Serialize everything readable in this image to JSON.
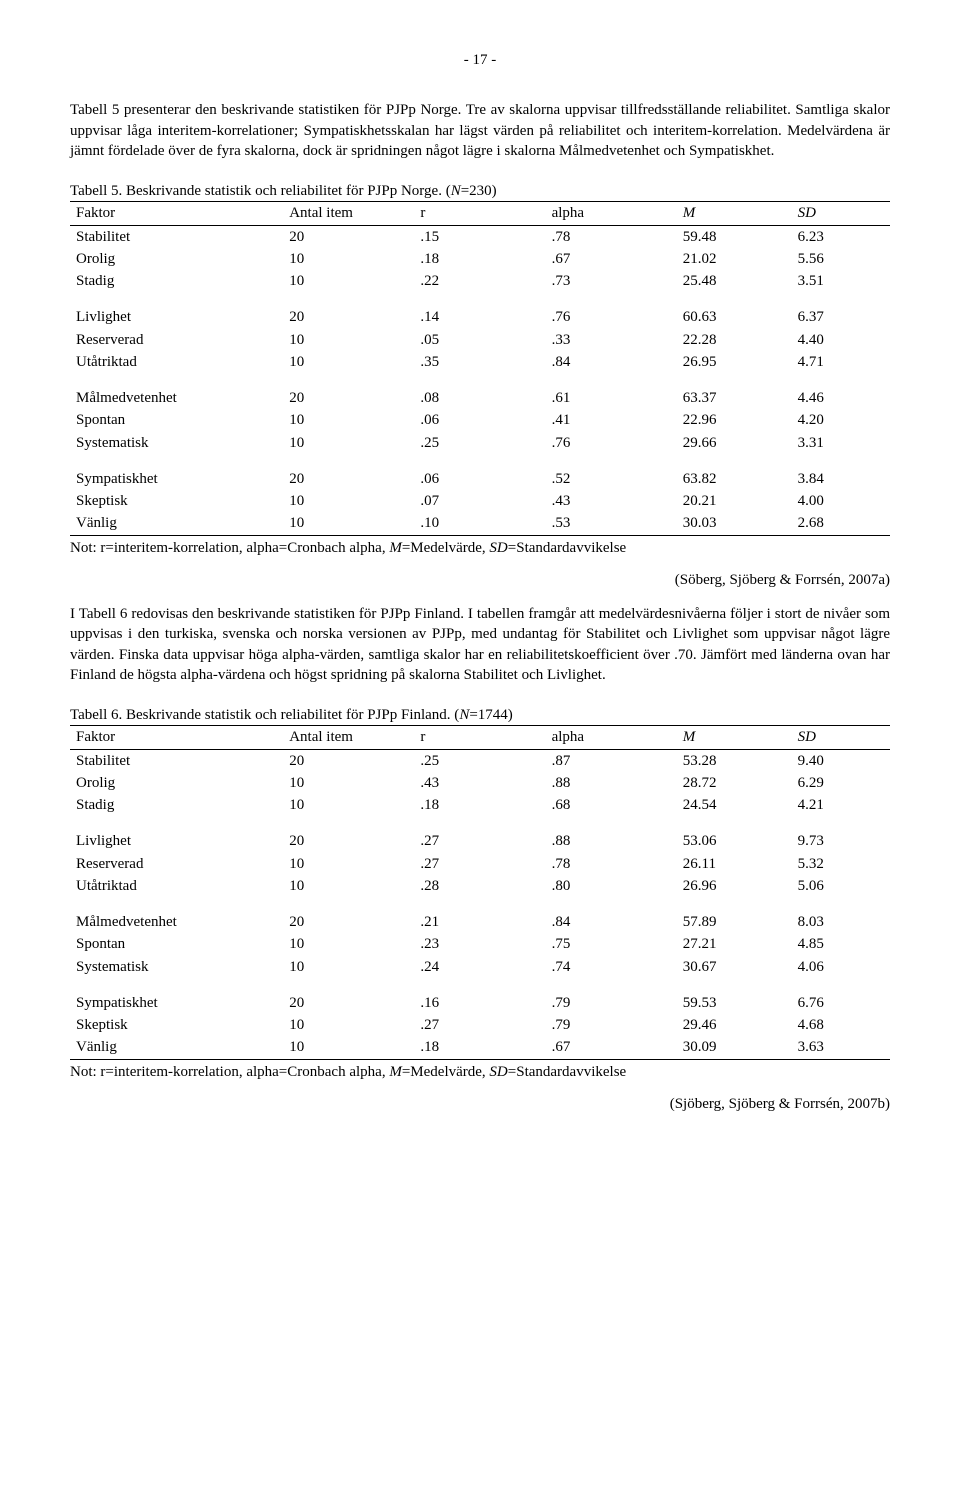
{
  "pageNumber": "- 17 -",
  "para1": "Tabell 5 presenterar den beskrivande statistiken för PJPp Norge. Tre av skalorna uppvisar tillfredsställande reliabilitet. Samtliga skalor uppvisar låga interitem-korrelationer; Sympatiskhetsskalan har lägst värden på reliabilitet och interitem-korrelation. Medelvärdena är jämnt fördelade över de fyra skalorna, dock är spridningen något lägre i skalorna Målmedvetenhet och Sympatiskhet.",
  "table5": {
    "caption_a": "Tabell 5. Beskrivande statistik och reliabilitet för PJPp Norge. (",
    "caption_n": "N",
    "caption_b": "=230)",
    "headers": {
      "f": "Faktor",
      "i": "Antal item",
      "r": "r",
      "a": "alpha",
      "m": "M",
      "sd": "SD"
    },
    "groups": [
      [
        {
          "f": "Stabilitet",
          "i": "20",
          "r": ".15",
          "a": ".78",
          "m": "59.48",
          "sd": "6.23"
        },
        {
          "f": "Orolig",
          "i": "10",
          "r": ".18",
          "a": ".67",
          "m": "21.02",
          "sd": "5.56"
        },
        {
          "f": "Stadig",
          "i": "10",
          "r": ".22",
          "a": ".73",
          "m": "25.48",
          "sd": "3.51"
        }
      ],
      [
        {
          "f": "Livlighet",
          "i": "20",
          "r": ".14",
          "a": ".76",
          "m": "60.63",
          "sd": "6.37"
        },
        {
          "f": "Reserverad",
          "i": "10",
          "r": ".05",
          "a": ".33",
          "m": "22.28",
          "sd": "4.40"
        },
        {
          "f": "Utåtriktad",
          "i": "10",
          "r": ".35",
          "a": ".84",
          "m": "26.95",
          "sd": "4.71"
        }
      ],
      [
        {
          "f": "Målmedvetenhet",
          "i": "20",
          "r": ".08",
          "a": ".61",
          "m": "63.37",
          "sd": "4.46"
        },
        {
          "f": "Spontan",
          "i": "10",
          "r": ".06",
          "a": ".41",
          "m": "22.96",
          "sd": "4.20"
        },
        {
          "f": "Systematisk",
          "i": "10",
          "r": ".25",
          "a": ".76",
          "m": "29.66",
          "sd": "3.31"
        }
      ],
      [
        {
          "f": "Sympatiskhet",
          "i": "20",
          "r": ".06",
          "a": ".52",
          "m": "63.82",
          "sd": "3.84"
        },
        {
          "f": "Skeptisk",
          "i": "10",
          "r": ".07",
          "a": ".43",
          "m": "20.21",
          "sd": "4.00"
        },
        {
          "f": "Vänlig",
          "i": "10",
          "r": ".10",
          "a": ".53",
          "m": "30.03",
          "sd": "2.68"
        }
      ]
    ],
    "note_a": "Not: r=interitem-korrelation, alpha=Cronbach alpha, ",
    "note_m": "M",
    "note_b": "=Medelvärde, ",
    "note_sd": "SD",
    "note_c": "=Standardavvikelse",
    "source": "(Söberg, Sjöberg & Forrsén, 2007a)"
  },
  "para2": "I Tabell 6 redovisas den beskrivande statistiken för PJPp Finland. I tabellen framgår att medelvärdesnivåerna följer i stort de nivåer som uppvisas i den turkiska, svenska och norska versionen av PJPp, med undantag för Stabilitet och Livlighet som uppvisar något lägre värden. Finska data uppvisar höga alpha-värden, samtliga skalor har en reliabilitetskoefficient över .70. Jämfört med länderna ovan har Finland de högsta alpha-värdena och högst spridning på skalorna Stabilitet och Livlighet.",
  "table6": {
    "caption_a": "Tabell 6. Beskrivande statistik och reliabilitet för PJPp Finland. (",
    "caption_n": "N",
    "caption_b": "=1744)",
    "headers": {
      "f": "Faktor",
      "i": "Antal item",
      "r": "r",
      "a": "alpha",
      "m": "M",
      "sd": "SD"
    },
    "groups": [
      [
        {
          "f": "Stabilitet",
          "i": "20",
          "r": ".25",
          "a": ".87",
          "m": "53.28",
          "sd": "9.40"
        },
        {
          "f": "Orolig",
          "i": "10",
          "r": ".43",
          "a": ".88",
          "m": "28.72",
          "sd": "6.29"
        },
        {
          "f": "Stadig",
          "i": "10",
          "r": ".18",
          "a": ".68",
          "m": "24.54",
          "sd": "4.21"
        }
      ],
      [
        {
          "f": "Livlighet",
          "i": "20",
          "r": ".27",
          "a": ".88",
          "m": "53.06",
          "sd": "9.73"
        },
        {
          "f": "Reserverad",
          "i": "10",
          "r": ".27",
          "a": ".78",
          "m": "26.11",
          "sd": "5.32"
        },
        {
          "f": "Utåtriktad",
          "i": "10",
          "r": ".28",
          "a": ".80",
          "m": "26.96",
          "sd": "5.06"
        }
      ],
      [
        {
          "f": "Målmedvetenhet",
          "i": "20",
          "r": ".21",
          "a": ".84",
          "m": "57.89",
          "sd": "8.03"
        },
        {
          "f": "Spontan",
          "i": "10",
          "r": ".23",
          "a": ".75",
          "m": "27.21",
          "sd": "4.85"
        },
        {
          "f": "Systematisk",
          "i": "10",
          "r": ".24",
          "a": ".74",
          "m": "30.67",
          "sd": "4.06"
        }
      ],
      [
        {
          "f": "Sympatiskhet",
          "i": "20",
          "r": ".16",
          "a": ".79",
          "m": "59.53",
          "sd": "6.76"
        },
        {
          "f": "Skeptisk",
          "i": "10",
          "r": ".27",
          "a": ".79",
          "m": "29.46",
          "sd": "4.68"
        },
        {
          "f": "Vänlig",
          "i": "10",
          "r": ".18",
          "a": ".67",
          "m": "30.09",
          "sd": "3.63"
        }
      ]
    ],
    "note_a": "Not: r=interitem-korrelation, alpha=Cronbach alpha, ",
    "note_m": "M",
    "note_b": "=Medelvärde, ",
    "note_sd": "SD",
    "note_c": "=Standardavvikelse",
    "source": "(Sjöberg, Sjöberg & Forrsén, 2007b)"
  }
}
